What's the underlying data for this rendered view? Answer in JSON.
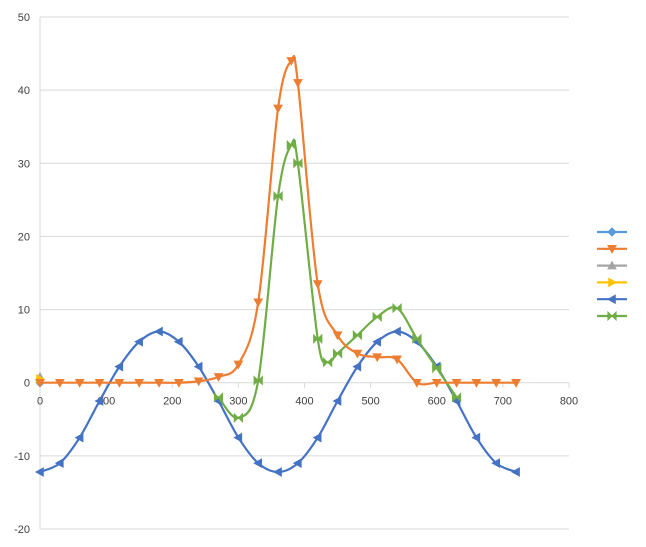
{
  "chart_data": {
    "type": "scatter",
    "title": "",
    "xlabel": "",
    "ylabel": "",
    "xlim": [
      0,
      800
    ],
    "ylim": [
      -20,
      50
    ],
    "x_ticks": [
      0,
      100,
      200,
      300,
      400,
      500,
      600,
      700,
      800
    ],
    "y_ticks": [
      -20,
      -10,
      0,
      10,
      20,
      30,
      40,
      50
    ],
    "grid": "horizontal",
    "legend_position": "right",
    "series": [
      {
        "color": "#5b9bd5",
        "marker": "diamond",
        "points": [
          [
            0,
            0
          ]
        ]
      },
      {
        "color": "#ed7d31",
        "marker": "triangle-down",
        "points": [
          [
            0,
            0
          ],
          [
            30,
            0
          ],
          [
            60,
            0
          ],
          [
            90,
            0
          ],
          [
            120,
            0
          ],
          [
            150,
            0
          ],
          [
            180,
            0
          ],
          [
            210,
            0
          ],
          [
            240,
            0.2
          ],
          [
            270,
            0.8
          ],
          [
            300,
            2.5
          ],
          [
            330,
            11
          ],
          [
            360,
            37.5
          ],
          [
            380,
            44
          ],
          [
            390,
            41
          ],
          [
            420,
            13.5
          ],
          [
            450,
            6.5
          ],
          [
            480,
            4
          ],
          [
            510,
            3.5
          ],
          [
            540,
            3.2
          ],
          [
            570,
            0
          ],
          [
            600,
            0
          ],
          [
            630,
            0
          ],
          [
            660,
            0
          ],
          [
            690,
            0
          ],
          [
            720,
            0
          ]
        ]
      },
      {
        "color": "#a5a5a5",
        "marker": "triangle-up",
        "points": [
          [
            0,
            0.8
          ]
        ]
      },
      {
        "color": "#ffc000",
        "marker": "triangle-right",
        "points": [
          [
            0,
            0.5
          ]
        ]
      },
      {
        "color": "#4472c4",
        "marker": "triangle-left",
        "points": [
          [
            0,
            -12.2
          ],
          [
            30,
            -11
          ],
          [
            60,
            -7.5
          ],
          [
            90,
            -2.5
          ],
          [
            120,
            2.2
          ],
          [
            150,
            5.6
          ],
          [
            180,
            7
          ],
          [
            210,
            5.6
          ],
          [
            240,
            2.2
          ],
          [
            270,
            -2.5
          ],
          [
            300,
            -7.5
          ],
          [
            330,
            -11
          ],
          [
            360,
            -12.2
          ],
          [
            390,
            -11
          ],
          [
            420,
            -7.5
          ],
          [
            450,
            -2.5
          ],
          [
            480,
            2.2
          ],
          [
            510,
            5.6
          ],
          [
            540,
            7
          ],
          [
            570,
            5.6
          ],
          [
            600,
            2.2
          ],
          [
            630,
            -2.5
          ],
          [
            660,
            -7.5
          ],
          [
            690,
            -11
          ],
          [
            720,
            -12.2
          ]
        ]
      },
      {
        "color": "#70ad47",
        "marker": "bowtie",
        "points": [
          [
            270,
            -2
          ],
          [
            300,
            -4.8
          ],
          [
            330,
            0.3
          ],
          [
            360,
            25.5
          ],
          [
            380,
            32.5
          ],
          [
            390,
            30
          ],
          [
            420,
            6
          ],
          [
            435,
            2.8
          ],
          [
            450,
            4
          ],
          [
            480,
            6.5
          ],
          [
            510,
            9
          ],
          [
            540,
            10.2
          ],
          [
            570,
            6
          ],
          [
            600,
            2
          ],
          [
            630,
            -2
          ]
        ]
      }
    ]
  }
}
